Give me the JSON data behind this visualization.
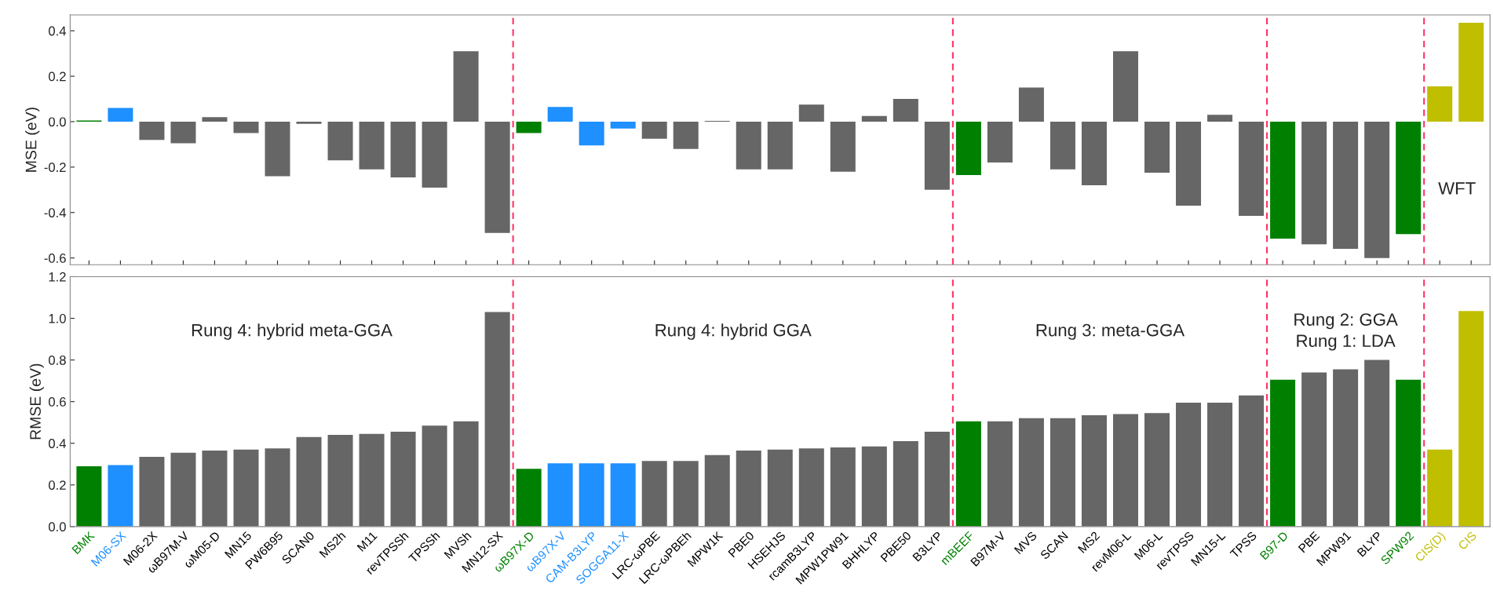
{
  "chart_data": [
    {
      "type": "bar",
      "ylabel": "MSE (eV)",
      "tick_labels": "y",
      "categories": [
        null,
        null,
        null,
        null,
        null,
        null,
        null,
        null,
        null,
        null,
        null,
        null,
        null,
        null,
        null,
        null,
        null,
        null,
        null,
        null,
        null,
        null,
        null,
        null,
        null,
        null,
        null,
        null,
        null,
        null,
        null,
        null,
        null,
        null,
        null,
        null,
        null,
        null,
        null,
        null,
        null,
        null,
        null,
        null,
        null
      ],
      "values": [
        0.005,
        0.06,
        -0.08,
        -0.095,
        0.02,
        -0.05,
        -0.24,
        -0.01,
        -0.17,
        -0.21,
        -0.245,
        -0.29,
        0.31,
        -0.49,
        -0.05,
        0.065,
        -0.105,
        -0.03,
        -0.075,
        -0.12,
        0.003,
        -0.21,
        -0.21,
        0.075,
        -0.22,
        0.025,
        0.1,
        -0.3,
        -0.235,
        -0.18,
        0.15,
        -0.21,
        -0.28,
        0.31,
        -0.225,
        -0.37,
        0.03,
        -0.415,
        -0.515,
        -0.54,
        -0.56,
        -0.6,
        -0.495,
        0.155,
        0.435
      ],
      "colors": [
        "#008000",
        "#1e90ff",
        "#666666",
        "#666666",
        "#666666",
        "#666666",
        "#666666",
        "#666666",
        "#666666",
        "#666666",
        "#666666",
        "#666666",
        "#666666",
        "#666666",
        "#008000",
        "#1e90ff",
        "#1e90ff",
        "#1e90ff",
        "#666666",
        "#666666",
        "#666666",
        "#666666",
        "#666666",
        "#666666",
        "#666666",
        "#666666",
        "#666666",
        "#666666",
        "#008000",
        "#666666",
        "#666666",
        "#666666",
        "#666666",
        "#666666",
        "#666666",
        "#666666",
        "#666666",
        "#666666",
        "#008000",
        "#666666",
        "#666666",
        "#666666",
        "#008000",
        "#bfbf00",
        "#bfbf00"
      ],
      "ylim": [
        -0.63,
        0.47
      ],
      "yticks": [
        {
          "value": -0.6,
          "label": "-0.6"
        },
        {
          "value": -0.4,
          "label": "-0.4"
        },
        {
          "value": -0.2,
          "label": "-0.2"
        },
        {
          "value": 0.0,
          "label": "0.0"
        },
        {
          "value": 0.2,
          "label": "0.2"
        },
        {
          "value": 0.4,
          "label": "0.4"
        }
      ],
      "annotations": [
        "WFT"
      ]
    },
    {
      "type": "bar",
      "ylabel": "RMSE (eV)",
      "categories": [
        "BMK",
        "M06-SX",
        "M06-2X",
        "ωB97M-V",
        "ωM05-D",
        "MN15",
        "PW6B95",
        "SCAN0",
        "MS2h",
        "M11",
        "revTPSSh",
        "TPSSh",
        "MVSh",
        "MN12-SX",
        "ωB97X-D",
        "ωB97X-V",
        "CAM-B3LYP",
        "SOGGA11-X",
        "LRC-ωPBE",
        "LRC-ωPBEh",
        "MPW1K",
        "PBE0",
        "HSEHJS",
        "rcamB3LYP",
        "MPW1PW91",
        "BHHLYP",
        "PBE50",
        "B3LYP",
        "mBEEF",
        "B97M-V",
        "MVS",
        "SCAN",
        "MS2",
        "revM06-L",
        "M06-L",
        "revTPSS",
        "MN15-L",
        "TPSS",
        "B97-D",
        "PBE",
        "MPW91",
        "BLYP",
        "SPW92",
        "CIS(D)",
        "CIS"
      ],
      "values": [
        0.29,
        0.295,
        0.335,
        0.355,
        0.365,
        0.37,
        0.375,
        0.43,
        0.44,
        0.445,
        0.455,
        0.485,
        0.505,
        1.03,
        0.277,
        0.304,
        0.304,
        0.304,
        0.315,
        0.315,
        0.343,
        0.365,
        0.37,
        0.375,
        0.38,
        0.385,
        0.41,
        0.455,
        0.505,
        0.505,
        0.52,
        0.52,
        0.535,
        0.54,
        0.545,
        0.595,
        0.595,
        0.63,
        0.705,
        0.74,
        0.755,
        0.8,
        0.705,
        0.37,
        1.035
      ],
      "colors": [
        "#008000",
        "#1e90ff",
        "#666666",
        "#666666",
        "#666666",
        "#666666",
        "#666666",
        "#666666",
        "#666666",
        "#666666",
        "#666666",
        "#666666",
        "#666666",
        "#666666",
        "#008000",
        "#1e90ff",
        "#1e90ff",
        "#1e90ff",
        "#666666",
        "#666666",
        "#666666",
        "#666666",
        "#666666",
        "#666666",
        "#666666",
        "#666666",
        "#666666",
        "#666666",
        "#008000",
        "#666666",
        "#666666",
        "#666666",
        "#666666",
        "#666666",
        "#666666",
        "#666666",
        "#666666",
        "#666666",
        "#008000",
        "#666666",
        "#666666",
        "#666666",
        "#008000",
        "#bfbf00",
        "#bfbf00"
      ],
      "ylim": [
        0,
        1.2
      ],
      "yticks": [
        {
          "value": 0.0,
          "label": "0.0"
        },
        {
          "value": 0.2,
          "label": "0.2"
        },
        {
          "value": 0.4,
          "label": "0.4"
        },
        {
          "value": 0.6,
          "label": "0.6"
        },
        {
          "value": 0.8,
          "label": "0.8"
        },
        {
          "value": 1.0,
          "label": "1.0"
        },
        {
          "value": 1.2,
          "label": "1.2"
        }
      ],
      "annotations": [
        "Rung 4: hybrid meta-GGA",
        "Rung 4: hybrid GGA",
        "Rung 3: meta-GGA",
        "Rung 2: GGA\nRung 1: LDA"
      ]
    }
  ]
}
